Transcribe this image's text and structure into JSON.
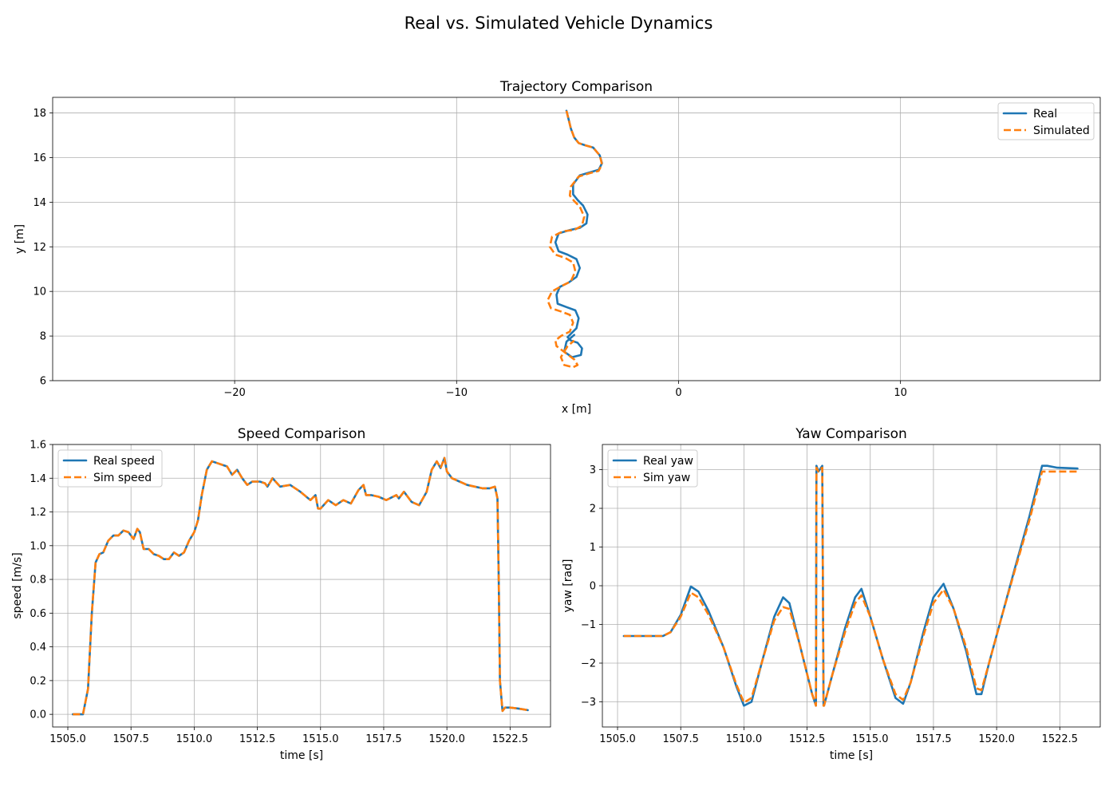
{
  "figure": {
    "suptitle": "Real vs. Simulated Vehicle Dynamics"
  },
  "colors": {
    "real": "#1f77b4",
    "sim": "#ff7f0e",
    "grid": "#b0b0b0"
  },
  "chart_data": [
    {
      "id": "traj",
      "type": "line",
      "title": "Trajectory Comparison",
      "xlabel": "x [m]",
      "ylabel": "y [m]",
      "xlim": [
        -28.2,
        19
      ],
      "ylim": [
        6,
        18.7
      ],
      "xticks": [
        -20,
        -10,
        0,
        10
      ],
      "xtick_labels": [
        "−20",
        "−10",
        "0",
        "10"
      ],
      "yticks": [
        6,
        8,
        10,
        12,
        14,
        16,
        18
      ],
      "ytick_labels": [
        "6",
        "8",
        "10",
        "12",
        "14",
        "16",
        "18"
      ],
      "grid": true,
      "legend": "top-right",
      "series": [
        {
          "name": "Real",
          "style": "solid",
          "color": "#1f77b4",
          "x": [
            -5.05,
            -4.95,
            -4.85,
            -4.7,
            -4.5,
            -4.2,
            -3.85,
            -3.55,
            -3.45,
            -3.6,
            -3.95,
            -4.45,
            -4.75,
            -4.75,
            -4.55,
            -4.3,
            -4.1,
            -4.15,
            -4.45,
            -4.9,
            -5.4,
            -5.55,
            -5.4,
            -5.0,
            -4.6,
            -4.45,
            -4.6,
            -4.95,
            -5.35,
            -5.5,
            -5.45,
            -5.05,
            -4.65,
            -4.5,
            -4.6,
            -4.85,
            -5.0,
            -4.85,
            -4.55,
            -4.35,
            -4.4,
            -4.8,
            -5.15,
            -5.05,
            -4.7
          ],
          "y": [
            18.1,
            17.7,
            17.3,
            16.9,
            16.65,
            16.55,
            16.45,
            16.1,
            15.75,
            15.45,
            15.35,
            15.2,
            14.8,
            14.35,
            14.1,
            13.85,
            13.45,
            13.05,
            12.85,
            12.75,
            12.6,
            12.2,
            11.8,
            11.65,
            11.45,
            11.05,
            10.65,
            10.4,
            10.2,
            9.85,
            9.45,
            9.3,
            9.15,
            8.8,
            8.35,
            8.1,
            7.95,
            7.8,
            7.7,
            7.45,
            7.15,
            7.05,
            7.3,
            7.75,
            8.05
          ]
        },
        {
          "name": "Simulated",
          "style": "dashed",
          "color": "#ff7f0e",
          "x": [
            -5.05,
            -4.95,
            -4.85,
            -4.7,
            -4.5,
            -4.2,
            -3.85,
            -3.55,
            -3.45,
            -3.6,
            -4.0,
            -4.5,
            -4.85,
            -4.9,
            -4.7,
            -4.45,
            -4.25,
            -4.35,
            -4.7,
            -5.2,
            -5.7,
            -5.8,
            -5.55,
            -5.1,
            -4.75,
            -4.65,
            -4.85,
            -5.25,
            -5.7,
            -5.9,
            -5.75,
            -5.3,
            -4.9,
            -4.75,
            -4.9,
            -5.3,
            -5.55,
            -5.5,
            -5.1,
            -4.7,
            -4.55,
            -4.75,
            -5.15,
            -5.3,
            -5.0,
            -4.7
          ],
          "y": [
            18.1,
            17.7,
            17.3,
            16.9,
            16.65,
            16.55,
            16.45,
            16.1,
            15.7,
            15.4,
            15.3,
            15.15,
            14.7,
            14.3,
            14.05,
            13.8,
            13.35,
            12.95,
            12.75,
            12.7,
            12.45,
            12.0,
            11.65,
            11.5,
            11.3,
            10.9,
            10.45,
            10.25,
            10.0,
            9.6,
            9.25,
            9.1,
            8.95,
            8.6,
            8.2,
            8.0,
            7.8,
            7.55,
            7.25,
            6.95,
            6.7,
            6.6,
            6.7,
            7.05,
            7.55,
            7.8
          ]
        }
      ]
    },
    {
      "id": "speed",
      "type": "line",
      "title": "Speed Comparison",
      "xlabel": "time [s]",
      "ylabel": "speed [m/s]",
      "xlim": [
        1504.4,
        1524.1
      ],
      "ylim": [
        -0.075,
        1.6
      ],
      "xticks": [
        1505.0,
        1507.5,
        1510.0,
        1512.5,
        1515.0,
        1517.5,
        1520.0,
        1522.5
      ],
      "xtick_labels": [
        "1505.0",
        "1507.5",
        "1510.0",
        "1512.5",
        "1515.0",
        "1517.5",
        "1520.0",
        "1522.5"
      ],
      "yticks": [
        0.0,
        0.2,
        0.4,
        0.6,
        0.8,
        1.0,
        1.2,
        1.4,
        1.6
      ],
      "ytick_labels": [
        "0.0",
        "0.2",
        "0.4",
        "0.6",
        "0.8",
        "1.0",
        "1.2",
        "1.4",
        "1.6"
      ],
      "grid": true,
      "legend": "top-left",
      "series": [
        {
          "name": "Real speed",
          "style": "solid",
          "color": "#1f77b4",
          "x": [
            1505.2,
            1505.6,
            1505.8,
            1505.95,
            1506.1,
            1506.25,
            1506.4,
            1506.6,
            1506.8,
            1507.0,
            1507.2,
            1507.4,
            1507.6,
            1507.75,
            1507.85,
            1508.0,
            1508.2,
            1508.4,
            1508.6,
            1508.8,
            1509.0,
            1509.2,
            1509.4,
            1509.6,
            1509.8,
            1510.0,
            1510.15,
            1510.3,
            1510.5,
            1510.7,
            1510.9,
            1511.1,
            1511.3,
            1511.5,
            1511.7,
            1511.9,
            1512.1,
            1512.3,
            1512.6,
            1512.8,
            1512.9,
            1513.1,
            1513.4,
            1513.8,
            1514.2,
            1514.6,
            1514.8,
            1514.9,
            1515.0,
            1515.3,
            1515.6,
            1515.9,
            1516.2,
            1516.5,
            1516.7,
            1516.8,
            1517.0,
            1517.3,
            1517.6,
            1518.0,
            1518.1,
            1518.3,
            1518.6,
            1518.9,
            1519.2,
            1519.4,
            1519.6,
            1519.75,
            1519.9,
            1520.0,
            1520.2,
            1520.5,
            1520.8,
            1521.1,
            1521.4,
            1521.7,
            1521.9,
            1522.0,
            1522.05,
            1522.1,
            1522.2,
            1522.3,
            1522.5,
            1522.8,
            1523.0,
            1523.2
          ],
          "y": [
            0.0,
            0.0,
            0.15,
            0.6,
            0.9,
            0.95,
            0.96,
            1.03,
            1.06,
            1.06,
            1.09,
            1.08,
            1.04,
            1.1,
            1.08,
            0.98,
            0.98,
            0.95,
            0.94,
            0.92,
            0.92,
            0.96,
            0.94,
            0.96,
            1.03,
            1.08,
            1.15,
            1.3,
            1.45,
            1.5,
            1.49,
            1.48,
            1.47,
            1.42,
            1.45,
            1.4,
            1.36,
            1.38,
            1.38,
            1.37,
            1.35,
            1.4,
            1.35,
            1.36,
            1.32,
            1.27,
            1.3,
            1.22,
            1.22,
            1.27,
            1.24,
            1.27,
            1.25,
            1.33,
            1.36,
            1.3,
            1.3,
            1.29,
            1.27,
            1.3,
            1.28,
            1.32,
            1.26,
            1.24,
            1.32,
            1.45,
            1.5,
            1.46,
            1.52,
            1.44,
            1.4,
            1.38,
            1.36,
            1.35,
            1.34,
            1.34,
            1.35,
            1.28,
            0.8,
            0.2,
            0.02,
            0.04,
            0.04,
            0.035,
            0.03,
            0.025
          ]
        },
        {
          "name": "Sim speed",
          "style": "dashed",
          "color": "#ff7f0e",
          "x": [
            1505.2,
            1505.6,
            1505.8,
            1505.95,
            1506.1,
            1506.25,
            1506.4,
            1506.6,
            1506.8,
            1507.0,
            1507.2,
            1507.4,
            1507.6,
            1507.75,
            1507.85,
            1508.0,
            1508.2,
            1508.4,
            1508.6,
            1508.8,
            1509.0,
            1509.2,
            1509.4,
            1509.6,
            1509.8,
            1510.0,
            1510.15,
            1510.3,
            1510.5,
            1510.7,
            1510.9,
            1511.1,
            1511.3,
            1511.5,
            1511.7,
            1511.9,
            1512.1,
            1512.3,
            1512.6,
            1512.8,
            1512.9,
            1513.1,
            1513.4,
            1513.8,
            1514.2,
            1514.6,
            1514.8,
            1514.9,
            1515.0,
            1515.3,
            1515.6,
            1515.9,
            1516.2,
            1516.5,
            1516.7,
            1516.8,
            1517.0,
            1517.3,
            1517.6,
            1518.0,
            1518.1,
            1518.3,
            1518.6,
            1518.9,
            1519.2,
            1519.4,
            1519.6,
            1519.75,
            1519.9,
            1520.0,
            1520.2,
            1520.5,
            1520.8,
            1521.1,
            1521.4,
            1521.7,
            1521.9,
            1522.0,
            1522.05,
            1522.1,
            1522.2,
            1522.3,
            1522.5,
            1522.8,
            1523.0,
            1523.2
          ],
          "y": [
            0.0,
            0.0,
            0.15,
            0.6,
            0.9,
            0.95,
            0.96,
            1.03,
            1.06,
            1.06,
            1.09,
            1.08,
            1.04,
            1.1,
            1.08,
            0.98,
            0.98,
            0.95,
            0.94,
            0.92,
            0.92,
            0.96,
            0.94,
            0.96,
            1.03,
            1.08,
            1.15,
            1.3,
            1.45,
            1.5,
            1.49,
            1.48,
            1.47,
            1.42,
            1.45,
            1.4,
            1.36,
            1.38,
            1.38,
            1.37,
            1.35,
            1.4,
            1.35,
            1.36,
            1.32,
            1.27,
            1.3,
            1.22,
            1.22,
            1.27,
            1.24,
            1.27,
            1.25,
            1.33,
            1.36,
            1.3,
            1.3,
            1.29,
            1.27,
            1.3,
            1.28,
            1.32,
            1.26,
            1.24,
            1.32,
            1.45,
            1.5,
            1.46,
            1.52,
            1.44,
            1.4,
            1.38,
            1.36,
            1.35,
            1.34,
            1.34,
            1.35,
            1.28,
            0.8,
            0.2,
            0.02,
            0.04,
            0.04,
            0.035,
            0.03,
            0.025
          ]
        }
      ]
    },
    {
      "id": "yaw",
      "type": "line",
      "title": "Yaw Comparison",
      "xlabel": "time [s]",
      "ylabel": "yaw [rad]",
      "xlim": [
        1504.4,
        1524.1
      ],
      "ylim": [
        -3.65,
        3.65
      ],
      "xticks": [
        1505.0,
        1507.5,
        1510.0,
        1512.5,
        1515.0,
        1517.5,
        1520.0,
        1522.5
      ],
      "xtick_labels": [
        "1505.0",
        "1507.5",
        "1510.0",
        "1512.5",
        "1515.0",
        "1517.5",
        "1520.0",
        "1522.5"
      ],
      "yticks": [
        -3,
        -2,
        -1,
        0,
        1,
        2,
        3
      ],
      "ytick_labels": [
        "−3",
        "−2",
        "−1",
        "0",
        "1",
        "2",
        "3"
      ],
      "grid": true,
      "legend": "top-left",
      "series": [
        {
          "name": "Real yaw",
          "style": "solid",
          "color": "#1f77b4",
          "x": [
            1505.25,
            1506.8,
            1507.1,
            1507.5,
            1507.9,
            1508.2,
            1508.6,
            1509.2,
            1509.7,
            1510.0,
            1510.3,
            1510.7,
            1511.2,
            1511.55,
            1511.8,
            1512.2,
            1512.7,
            1512.85,
            1512.87,
            1512.95,
            1513.1,
            1513.15,
            1513.17,
            1513.5,
            1514.0,
            1514.4,
            1514.65,
            1515.0,
            1515.5,
            1516.0,
            1516.3,
            1516.6,
            1517.1,
            1517.5,
            1517.9,
            1518.3,
            1518.8,
            1519.2,
            1519.4,
            1519.7,
            1520.2,
            1520.7,
            1521.3,
            1521.8,
            1522.0,
            1522.4,
            1523.2
          ],
          "y": [
            -1.3,
            -1.3,
            -1.2,
            -0.75,
            -0.02,
            -0.15,
            -0.65,
            -1.6,
            -2.6,
            -3.1,
            -3.0,
            -2.0,
            -0.8,
            -0.3,
            -0.45,
            -1.5,
            -2.8,
            -3.1,
            3.1,
            2.95,
            3.1,
            -3.1,
            -3.1,
            -2.3,
            -1.1,
            -0.3,
            -0.08,
            -0.8,
            -1.9,
            -2.9,
            -3.05,
            -2.5,
            -1.2,
            -0.3,
            0.05,
            -0.6,
            -1.7,
            -2.8,
            -2.8,
            -2.0,
            -0.8,
            0.4,
            1.8,
            3.1,
            3.1,
            3.05,
            3.03
          ]
        },
        {
          "name": "Sim yaw",
          "style": "dashed",
          "color": "#ff7f0e",
          "x": [
            1505.25,
            1506.8,
            1507.1,
            1507.5,
            1507.9,
            1508.2,
            1508.6,
            1509.2,
            1509.7,
            1510.0,
            1510.3,
            1510.7,
            1511.2,
            1511.55,
            1511.8,
            1512.2,
            1512.7,
            1512.85,
            1512.87,
            1512.95,
            1513.1,
            1513.15,
            1513.17,
            1513.5,
            1514.0,
            1514.4,
            1514.65,
            1515.0,
            1515.5,
            1516.0,
            1516.3,
            1516.6,
            1517.1,
            1517.5,
            1517.9,
            1518.3,
            1518.8,
            1519.2,
            1519.4,
            1519.7,
            1520.2,
            1520.7,
            1521.3,
            1521.8,
            1522.0,
            1522.4,
            1523.2
          ],
          "y": [
            -1.3,
            -1.3,
            -1.2,
            -0.8,
            -0.18,
            -0.3,
            -0.75,
            -1.6,
            -2.55,
            -3.02,
            -2.9,
            -2.0,
            -0.9,
            -0.55,
            -0.6,
            -1.5,
            -2.8,
            -3.1,
            3.05,
            2.95,
            3.05,
            -3.1,
            -3.1,
            -2.3,
            -1.2,
            -0.45,
            -0.25,
            -0.8,
            -1.9,
            -2.8,
            -2.95,
            -2.5,
            -1.3,
            -0.45,
            -0.1,
            -0.6,
            -1.6,
            -2.65,
            -2.7,
            -2.0,
            -0.8,
            0.35,
            1.7,
            2.95,
            2.95,
            2.95,
            2.95
          ]
        }
      ]
    }
  ]
}
